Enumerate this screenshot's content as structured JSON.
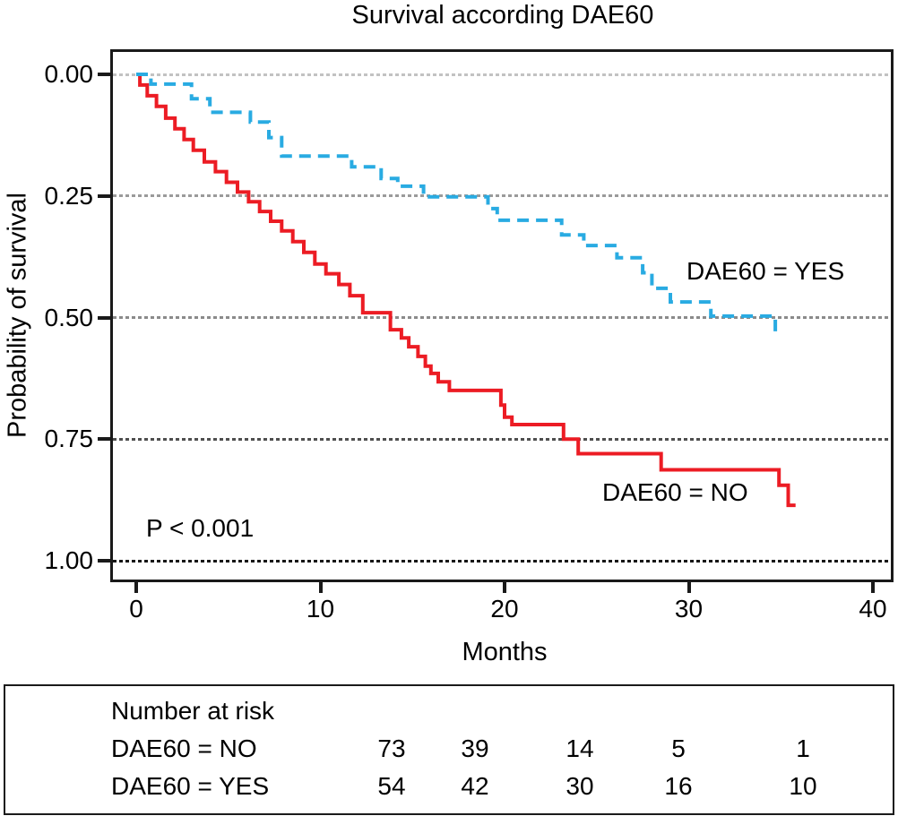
{
  "title": "Survival according DAE60",
  "y_axis": {
    "label": "Probability of survival",
    "tick_labels": [
      "0.00",
      "0.25",
      "0.50",
      "0.75",
      "1.00"
    ],
    "tick_values": [
      0,
      0.25,
      0.5,
      0.75,
      1
    ]
  },
  "x_axis": {
    "label": "Months",
    "tick_values": [
      0,
      10,
      20,
      30,
      40
    ]
  },
  "annotation": {
    "p_value": "P < 0.001"
  },
  "chart_data": {
    "type": "line",
    "subtype": "kaplan-meier-step",
    "title": "Survival according DAE60",
    "xlabel": "Months",
    "ylabel": "Probability of survival",
    "xlim": [
      0,
      40
    ],
    "ylim": [
      0,
      1
    ],
    "y_axis_inverted": true,
    "grid": "dotted-horizontal",
    "gridline_values": [
      0,
      0.25,
      0.5,
      0.75,
      1
    ],
    "gridline_colors": [
      "#c2c2c2",
      "#9b9b9b",
      "#8b8b8b",
      "#4f4f4f",
      "#161616"
    ],
    "series": [
      {
        "name": "DAE60 = NO",
        "label": "DAE60 = NO",
        "color": "#ec1c24",
        "style": "solid",
        "steps": [
          [
            0,
            0
          ],
          [
            0.2,
            0.022
          ],
          [
            0.6,
            0.044
          ],
          [
            1.1,
            0.066
          ],
          [
            1.6,
            0.09
          ],
          [
            2.1,
            0.112
          ],
          [
            2.6,
            0.134
          ],
          [
            3.1,
            0.156
          ],
          [
            3.7,
            0.18
          ],
          [
            4.3,
            0.2
          ],
          [
            4.9,
            0.222
          ],
          [
            5.5,
            0.242
          ],
          [
            6.1,
            0.262
          ],
          [
            6.7,
            0.282
          ],
          [
            7.3,
            0.302
          ],
          [
            7.9,
            0.322
          ],
          [
            8.5,
            0.344
          ],
          [
            9.1,
            0.366
          ],
          [
            9.7,
            0.39
          ],
          [
            10.3,
            0.41
          ],
          [
            11,
            0.432
          ],
          [
            11.6,
            0.455
          ],
          [
            12.3,
            0.49
          ],
          [
            13.8,
            0.525
          ],
          [
            14.4,
            0.542
          ],
          [
            14.8,
            0.56
          ],
          [
            15.3,
            0.58
          ],
          [
            15.7,
            0.6
          ],
          [
            16,
            0.615
          ],
          [
            16.4,
            0.632
          ],
          [
            17,
            0.65
          ],
          [
            19.8,
            0.68
          ],
          [
            20,
            0.705
          ],
          [
            20.4,
            0.72
          ],
          [
            23.2,
            0.75
          ],
          [
            24,
            0.78
          ],
          [
            28.5,
            0.813
          ],
          [
            34.9,
            0.845
          ],
          [
            35.4,
            0.886
          ],
          [
            35.8,
            0.886
          ]
        ]
      },
      {
        "name": "DAE60 = YES",
        "label": "DAE60 = YES",
        "color": "#29abe2",
        "style": "dashed",
        "steps": [
          [
            0,
            0
          ],
          [
            0.8,
            0.02
          ],
          [
            3,
            0.05
          ],
          [
            4,
            0.078
          ],
          [
            6.2,
            0.098
          ],
          [
            7.2,
            0.13
          ],
          [
            7.9,
            0.168
          ],
          [
            11.7,
            0.19
          ],
          [
            13.3,
            0.214
          ],
          [
            14.2,
            0.23
          ],
          [
            15.6,
            0.252
          ],
          [
            19.1,
            0.276
          ],
          [
            19.6,
            0.3
          ],
          [
            23.1,
            0.33
          ],
          [
            24.3,
            0.352
          ],
          [
            26.1,
            0.377
          ],
          [
            27.5,
            0.408
          ],
          [
            28,
            0.44
          ],
          [
            29,
            0.468
          ],
          [
            31.2,
            0.497
          ],
          [
            34.7,
            0.54
          ]
        ]
      }
    ]
  },
  "at_risk_table": {
    "header": "Number at risk",
    "rows": [
      {
        "label": "DAE60 = NO",
        "values": [
          73,
          39,
          14,
          5,
          1
        ]
      },
      {
        "label": "DAE60 = YES",
        "values": [
          54,
          42,
          30,
          16,
          10
        ]
      }
    ]
  }
}
